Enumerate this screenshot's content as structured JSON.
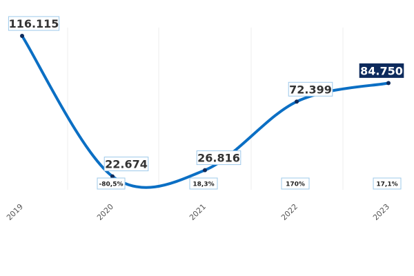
{
  "chart_data": {
    "type": "line",
    "categories": [
      "2019",
      "2020",
      "2021",
      "2022",
      "2023"
    ],
    "values": [
      116115,
      22674,
      26816,
      72399,
      84750
    ],
    "value_labels": [
      "116.115",
      "22.674",
      "26.816",
      "72.399",
      "84.750"
    ],
    "change_labels": [
      "",
      "-80,5%",
      "18,3%",
      "170%",
      "17,1%"
    ],
    "title": "",
    "xlabel": "",
    "ylabel": "",
    "grid": "vertical-light",
    "colors": {
      "line": "#0b6fc4",
      "marker": "#0d2a5c",
      "label_border": "#9cc8ea",
      "highlight_bg": "#0d2a5c",
      "highlight_text": "#ffffff",
      "label_text": "#333333"
    }
  }
}
